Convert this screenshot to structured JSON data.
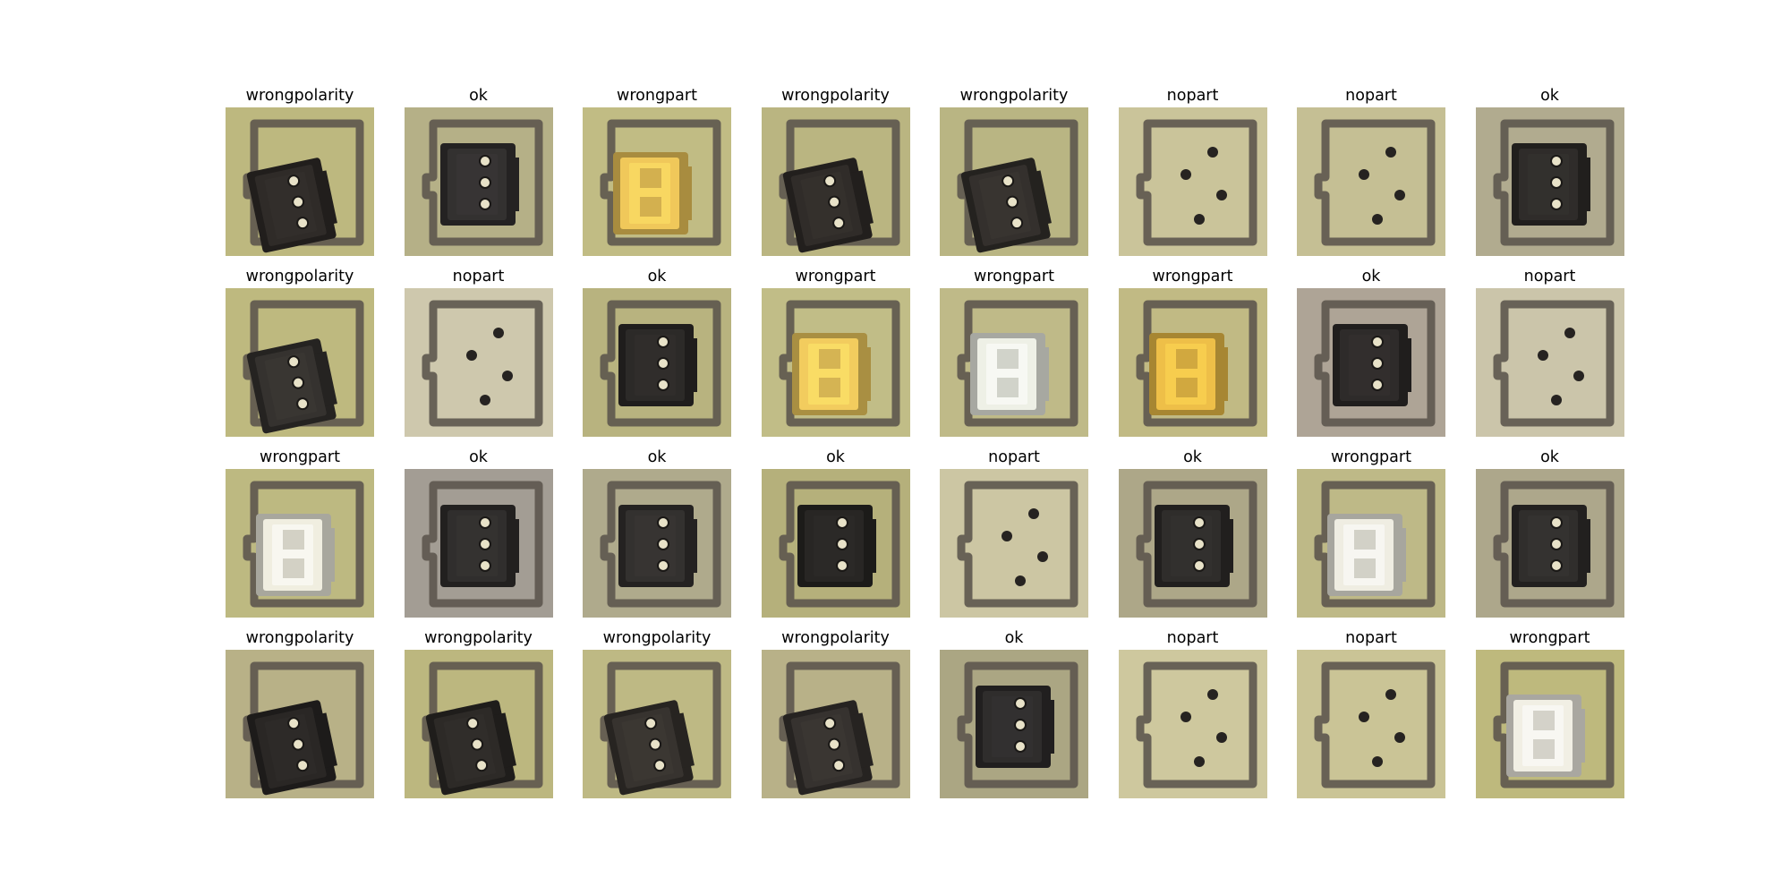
{
  "figure": {
    "panels": [
      {
        "label": "wrongpolarity",
        "state": "wrongpolarity",
        "connector_color": "#2f2b28",
        "board_color": "#c4bf84"
      },
      {
        "label": "ok",
        "state": "ok",
        "connector_color": "#333130",
        "board_color": "#bcb78c"
      },
      {
        "label": "wrongpart",
        "state": "wrongpart",
        "connector_color": "#f0c85a",
        "board_color": "#c8c38a"
      },
      {
        "label": "wrongpolarity",
        "state": "wrongpolarity",
        "connector_color": "#302c29",
        "board_color": "#c2bd86"
      },
      {
        "label": "wrongpolarity",
        "state": "wrongpolarity",
        "connector_color": "#34302d",
        "board_color": "#c1bc88"
      },
      {
        "label": "nopart",
        "state": "nopart",
        "connector_color": "",
        "board_color": "#d2cca0"
      },
      {
        "label": "nopart",
        "state": "nopart",
        "connector_color": "",
        "board_color": "#cdc79a"
      },
      {
        "label": "ok",
        "state": "ok",
        "connector_color": "#2f2c2a",
        "board_color": "#b8b294"
      },
      {
        "label": "wrongpolarity",
        "state": "wrongpolarity",
        "connector_color": "#35322f",
        "board_color": "#c6c184"
      },
      {
        "label": "nopart",
        "state": "nopart",
        "connector_color": "",
        "board_color": "#d6d0b4"
      },
      {
        "label": "ok",
        "state": "ok",
        "connector_color": "#2c2a28",
        "board_color": "#bfba84"
      },
      {
        "label": "wrongpart",
        "state": "wrongpart",
        "connector_color": "#f2cc5e",
        "board_color": "#c9c48c"
      },
      {
        "label": "wrongpart",
        "state": "wrongpart",
        "connector_color": "#eef0e6",
        "board_color": "#c7c28e"
      },
      {
        "label": "wrongpart",
        "state": "wrongpart",
        "connector_color": "#eebf48",
        "board_color": "#c8c28a"
      },
      {
        "label": "ok",
        "state": "ok",
        "connector_color": "#2e2b2a",
        "board_color": "#b5ab9c"
      },
      {
        "label": "nopart",
        "state": "nopart",
        "connector_color": "",
        "board_color": "#d3cdb0"
      },
      {
        "label": "wrongpart",
        "state": "wrongpart",
        "connector_color": "#f0eee0",
        "board_color": "#c5c086"
      },
      {
        "label": "ok",
        "state": "ok",
        "connector_color": "#302e2d",
        "board_color": "#aaa39a"
      },
      {
        "label": "ok",
        "state": "ok",
        "connector_color": "#33312f",
        "board_color": "#b6b092"
      },
      {
        "label": "ok",
        "state": "ok",
        "connector_color": "#282624",
        "board_color": "#bcb780"
      },
      {
        "label": "nopart",
        "state": "nopart",
        "connector_color": "",
        "board_color": "#d4ceaa"
      },
      {
        "label": "ok",
        "state": "ok",
        "connector_color": "#2f2d2b",
        "board_color": "#b4ae8e"
      },
      {
        "label": "wrongpart",
        "state": "wrongpart",
        "connector_color": "#efede2",
        "board_color": "#c6c08c"
      },
      {
        "label": "ok",
        "state": "ok",
        "connector_color": "#302e2c",
        "board_color": "#b4ae90"
      },
      {
        "label": "wrongpolarity",
        "state": "wrongpolarity",
        "connector_color": "#2a2725",
        "board_color": "#bfb98c"
      },
      {
        "label": "wrongpolarity",
        "state": "wrongpolarity",
        "connector_color": "#2d2a27",
        "board_color": "#c3be84"
      },
      {
        "label": "wrongpolarity",
        "state": "wrongpolarity",
        "connector_color": "#37332f",
        "board_color": "#c6c18a"
      },
      {
        "label": "wrongpolarity",
        "state": "wrongpolarity",
        "connector_color": "#36322f",
        "board_color": "#bfb98e"
      },
      {
        "label": "ok",
        "state": "ok",
        "connector_color": "#2f2d2c",
        "board_color": "#b2ac88"
      },
      {
        "label": "nopart",
        "state": "nopart",
        "connector_color": "",
        "board_color": "#d6d0a4"
      },
      {
        "label": "nopart",
        "state": "nopart",
        "connector_color": "",
        "board_color": "#d2cc9c"
      },
      {
        "label": "wrongpart",
        "state": "wrongpart",
        "connector_color": "#f1efe4",
        "board_color": "#c6c082"
      }
    ]
  }
}
